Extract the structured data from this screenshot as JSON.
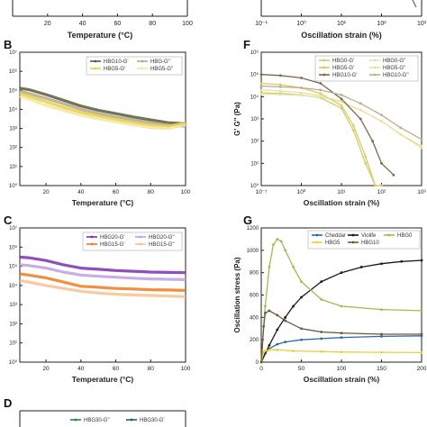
{
  "figure": {
    "panels": [
      {
        "id": "B",
        "letter": "B"
      },
      {
        "id": "F",
        "letter": "F"
      },
      {
        "id": "C",
        "letter": "C"
      },
      {
        "id": "G",
        "letter": "G"
      },
      {
        "id": "D",
        "letter": "D"
      },
      {
        "id": "A",
        "letter": ""
      },
      {
        "id": "E",
        "letter": ""
      }
    ]
  },
  "chart_data": [
    {
      "panel": "A",
      "type": "line",
      "title": "",
      "xlabel": "Temperature (°C)",
      "ylabel": "",
      "xlim": [
        0,
        100
      ],
      "xticks": [
        "20",
        "40",
        "60",
        "80",
        "100"
      ],
      "series": []
    },
    {
      "panel": "E",
      "type": "line",
      "title": "",
      "xlabel": "Oscillation strain (%)",
      "ylabel": "",
      "xscale": "log",
      "xticks": [
        "10⁻¹",
        "10⁰",
        "10¹",
        "10²",
        "10³"
      ],
      "series": []
    },
    {
      "panel": "B",
      "type": "line",
      "xlabel": "Temperature (°C)",
      "ylabel": "G' G'' (Pa)",
      "xlim": [
        5,
        100
      ],
      "yscale": "log",
      "ylim_exp": [
        0,
        7
      ],
      "xticks": [
        "20",
        "40",
        "60",
        "80",
        "100"
      ],
      "yticks": [
        "10⁰",
        "10¹",
        "10²",
        "10³",
        "10⁴",
        "10⁵",
        "10⁶",
        "10⁷"
      ],
      "legend_position": "top",
      "series": [
        {
          "name": "HBG10-G'",
          "color": "#5a5a3a",
          "x": [
            5,
            10,
            20,
            30,
            40,
            50,
            60,
            70,
            80,
            90,
            100
          ],
          "y": [
            130000,
            110000,
            60000,
            30000,
            15000,
            9000,
            6000,
            4000,
            2800,
            2000,
            1800
          ]
        },
        {
          "name": "HBG-G''",
          "color": "#b0a890",
          "x": [
            5,
            10,
            20,
            30,
            40,
            50,
            60,
            70,
            80,
            90,
            100
          ],
          "y": [
            90000,
            70000,
            38000,
            20000,
            10000,
            6000,
            4000,
            2800,
            2000,
            1500,
            1300
          ]
        },
        {
          "name": "HBG5-G'",
          "color": "#e8d040",
          "x": [
            5,
            10,
            20,
            30,
            40,
            50,
            60,
            70,
            80,
            90,
            100
          ],
          "y": [
            70000,
            50000,
            25000,
            13000,
            7000,
            4500,
            3000,
            2000,
            1500,
            1300,
            2000
          ]
        },
        {
          "name": "HBG5-G''",
          "color": "#f2e6a0",
          "x": [
            5,
            10,
            20,
            30,
            40,
            50,
            60,
            70,
            80,
            90,
            100
          ],
          "y": [
            50000,
            35000,
            16000,
            9000,
            5000,
            3200,
            2200,
            1500,
            1100,
            1000,
            1600
          ]
        }
      ]
    },
    {
      "panel": "F",
      "type": "line",
      "xlabel": "Oscillation strain (%)",
      "ylabel": "G' G'' (Pa)",
      "xscale": "log",
      "yscale": "log",
      "xlim_exp": [
        -1,
        3
      ],
      "ylim_exp": [
        0,
        6
      ],
      "xticks": [
        "10⁻¹",
        "10⁰",
        "10¹",
        "10²",
        "10³"
      ],
      "yticks": [
        "10⁰",
        "10¹",
        "10²",
        "10³",
        "10⁴",
        "10⁵",
        "10⁶"
      ],
      "legend_position": "top",
      "series": [
        {
          "name": "HBG0-G'",
          "color": "#c8d070",
          "x": [
            0.1,
            0.3,
            1,
            3,
            10,
            20,
            40,
            70,
            100
          ],
          "y": [
            15000,
            14000,
            12000,
            9000,
            3000,
            300,
            10,
            1,
            1
          ]
        },
        {
          "name": "HBG0-G''",
          "color": "#e0e6a8",
          "x": [
            0.1,
            0.3,
            1,
            3,
            10,
            30,
            100,
            300,
            1000
          ],
          "y": [
            13000,
            12500,
            11500,
            9500,
            6000,
            2500,
            800,
            200,
            60
          ]
        },
        {
          "name": "HBG5-G'",
          "color": "#e0c860",
          "x": [
            0.1,
            0.3,
            1,
            3,
            10,
            20,
            40,
            70,
            100
          ],
          "y": [
            40000,
            35000,
            25000,
            14000,
            4000,
            500,
            20,
            1,
            1
          ]
        },
        {
          "name": "HBG5-G''",
          "color": "#f0dca0",
          "x": [
            0.1,
            0.3,
            1,
            3,
            10,
            30,
            100,
            300,
            1000
          ],
          "y": [
            20000,
            18000,
            15000,
            11000,
            6000,
            2500,
            800,
            200,
            50
          ]
        },
        {
          "name": "HBG10-G'",
          "color": "#7a6a4a",
          "x": [
            0.1,
            0.3,
            1,
            3,
            10,
            30,
            60,
            100,
            200
          ],
          "y": [
            100000,
            90000,
            70000,
            40000,
            8000,
            1000,
            100,
            10,
            3
          ]
        },
        {
          "name": "HBG10-G''",
          "color": "#b8ae98",
          "x": [
            0.1,
            0.3,
            1,
            3,
            10,
            30,
            100,
            300,
            1000
          ],
          "y": [
            30000,
            28000,
            25000,
            20000,
            12000,
            5000,
            1500,
            400,
            120
          ]
        }
      ]
    },
    {
      "panel": "C",
      "type": "line",
      "xlabel": "Temperature (°C)",
      "ylabel": "G' G'' (Pa)",
      "xlim": [
        5,
        100
      ],
      "yscale": "log",
      "ylim_exp": [
        0,
        7
      ],
      "xticks": [
        "20",
        "40",
        "60",
        "80",
        "100"
      ],
      "yticks": [
        "10⁰",
        "10¹",
        "10²",
        "10³",
        "10⁴",
        "10⁵",
        "10⁶",
        "10⁷"
      ],
      "legend_position": "top",
      "series": [
        {
          "name": "HBG20-G'",
          "color": "#7a30b0",
          "x": [
            5,
            10,
            20,
            30,
            40,
            50,
            60,
            70,
            80,
            90,
            100
          ],
          "y": [
            300000,
            280000,
            200000,
            120000,
            80000,
            70000,
            60000,
            55000,
            50000,
            48000,
            46000
          ]
        },
        {
          "name": "HBG20-G''",
          "color": "#c0a0e0",
          "x": [
            5,
            10,
            20,
            30,
            40,
            50,
            60,
            70,
            80,
            90,
            100
          ],
          "y": [
            120000,
            110000,
            80000,
            50000,
            35000,
            30000,
            27000,
            24000,
            22000,
            21000,
            20000
          ]
        },
        {
          "name": "HBG15-G'",
          "color": "#f07a20",
          "x": [
            5,
            10,
            20,
            30,
            40,
            50,
            60,
            70,
            80,
            90,
            100
          ],
          "y": [
            40000,
            35000,
            25000,
            15000,
            9000,
            8000,
            7000,
            6500,
            6000,
            5800,
            5500
          ]
        },
        {
          "name": "HBG15-G''",
          "color": "#f8c090",
          "x": [
            5,
            10,
            20,
            30,
            40,
            50,
            60,
            70,
            80,
            90,
            100
          ],
          "y": [
            18000,
            15000,
            10000,
            7000,
            5000,
            4000,
            3500,
            3200,
            3000,
            2800,
            2600
          ]
        }
      ]
    },
    {
      "panel": "G",
      "type": "line",
      "xlabel": "Oscillation strain (%)",
      "ylabel": "Oscillation stress (Pa)",
      "xlim": [
        0,
        200
      ],
      "ylim": [
        0,
        1200
      ],
      "xticks": [
        "0",
        "50",
        "100",
        "150",
        "200"
      ],
      "yticks": [
        "0",
        "200",
        "400",
        "600",
        "800",
        "1000",
        "1200"
      ],
      "legend_position": "top",
      "series": [
        {
          "name": "Cheddar",
          "color": "#2a6aa8",
          "x": [
            0,
            5,
            10,
            20,
            30,
            50,
            75,
            100,
            150,
            200
          ],
          "y": [
            0,
            80,
            120,
            160,
            180,
            200,
            210,
            220,
            230,
            235
          ]
        },
        {
          "name": "Violife",
          "color": "#1a1a1a",
          "x": [
            0,
            10,
            20,
            30,
            40,
            50,
            75,
            100,
            125,
            150,
            175,
            200
          ],
          "y": [
            0,
            150,
            290,
            400,
            500,
            580,
            720,
            800,
            850,
            880,
            900,
            910
          ]
        },
        {
          "name": "HBG0",
          "color": "#a8b850",
          "x": [
            0,
            5,
            10,
            15,
            20,
            25,
            30,
            40,
            50,
            75,
            100,
            150,
            200
          ],
          "y": [
            0,
            500,
            850,
            1050,
            1100,
            1080,
            1000,
            850,
            720,
            560,
            500,
            470,
            460
          ]
        },
        {
          "name": "HBG5",
          "color": "#e8d040",
          "x": [
            0,
            3,
            5,
            10,
            20,
            40,
            75,
            100,
            150,
            200
          ],
          "y": [
            0,
            90,
            100,
            110,
            110,
            100,
            95,
            90,
            88,
            85
          ]
        },
        {
          "name": "HBG10",
          "color": "#6a5a3a",
          "x": [
            0,
            3,
            5,
            10,
            20,
            30,
            50,
            75,
            100,
            150,
            200
          ],
          "y": [
            0,
            320,
            440,
            460,
            420,
            370,
            300,
            270,
            260,
            250,
            250
          ]
        }
      ]
    },
    {
      "panel": "D",
      "type": "line",
      "xlabel": "",
      "ylabel": "",
      "legend_position": "top",
      "series": [
        {
          "name": "HBG30-G''",
          "color": "#208a3a",
          "x": [],
          "y": []
        },
        {
          "name": "HBG30-G'",
          "color": "#106a6a",
          "x": [],
          "y": []
        }
      ]
    }
  ]
}
